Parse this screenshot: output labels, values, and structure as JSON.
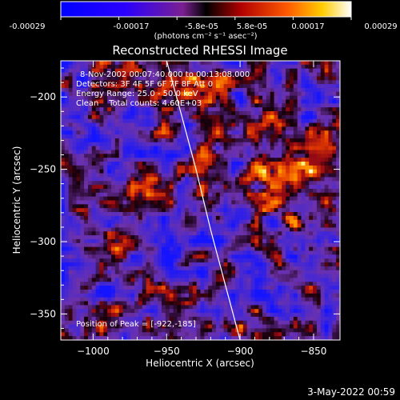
{
  "chart_data": {
    "type": "heatmap",
    "title": "Reconstructed RHESSI Image",
    "colorbar": {
      "tick_labels": [
        "-0.00029",
        "-0.00017",
        "-5.8e-05",
        "5.8e-05",
        "0.00017",
        "0.00029"
      ],
      "range": [
        -0.00029,
        0.00029
      ],
      "unit_label": "(photons cm⁻² s⁻¹ asec⁻²)"
    },
    "annotations": [
      "8-Nov-2002 00:07:40.000 to 00:13:08.000",
      "Detectors: 3F 4F 5F 6F 7F 8F  Att 0",
      "Energy Range: 25.0 - 50.0 keV",
      "Clean    Total counts: 4.60E+03"
    ],
    "peak_label": "Position of Peak = [-922,-185]",
    "xlabel": "Heliocentric X (arcsec)",
    "ylabel": "Heliocentric Y (arcsec)",
    "xlim": [
      -1022,
      -832
    ],
    "ylim": [
      -368,
      -175
    ],
    "x_ticks": [
      -1000,
      -950,
      -900,
      -850
    ],
    "y_ticks": [
      -200,
      -250,
      -300,
      -350
    ],
    "x_tick_labels": [
      "−1000",
      "−950",
      "−900",
      "−850"
    ],
    "y_tick_labels": [
      "−200",
      "−250",
      "−300",
      "−350"
    ],
    "limb_curve": {
      "x": [
        -950,
        -940,
        -930,
        -920,
        -910,
        -900
      ],
      "y": [
        -175,
        -212,
        -250,
        -292,
        -330,
        -368
      ]
    },
    "peak": {
      "x": -922,
      "y": -185
    },
    "grid": false
  },
  "footer": {
    "timestamp": "3-May-2022 00:59"
  }
}
